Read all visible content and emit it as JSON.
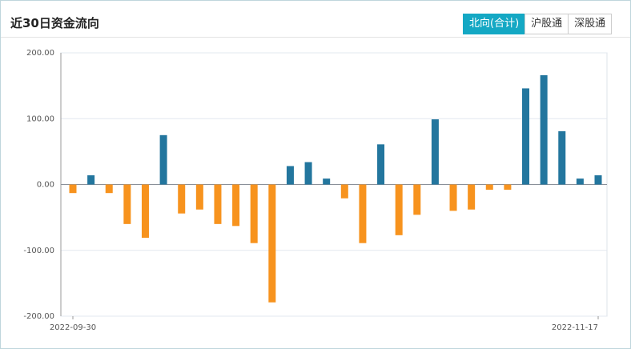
{
  "header": {
    "title": "近30日资金流向",
    "tabs": [
      "北向(合计)",
      "沪股通",
      "深股通"
    ]
  },
  "chart_data": {
    "type": "bar",
    "categories": [
      "2022-09-30",
      null,
      null,
      null,
      null,
      null,
      null,
      null,
      null,
      null,
      null,
      null,
      null,
      null,
      null,
      null,
      null,
      null,
      null,
      null,
      null,
      null,
      null,
      null,
      null,
      null,
      null,
      null,
      null,
      "2022-11-17"
    ],
    "values": [
      -13,
      14,
      -13,
      -60,
      -81,
      75,
      -44,
      -38,
      -60,
      -63,
      -89,
      -179,
      28,
      34,
      9,
      -21,
      -89,
      61,
      -77,
      -46,
      99,
      -40,
      -38,
      -8,
      -8,
      146,
      166,
      81,
      9,
      14
    ],
    "positive_color": "#23769e",
    "negative_color": "#f7931e",
    "ylim": [
      -200,
      200
    ],
    "yticks": [
      {
        "value": -200,
        "label": "-200.00"
      },
      {
        "value": -100,
        "label": "-100.00"
      },
      {
        "value": 0,
        "label": "0.00"
      },
      {
        "value": 100,
        "label": "100.00"
      },
      {
        "value": 200,
        "label": "200.00"
      }
    ],
    "grid": true
  }
}
